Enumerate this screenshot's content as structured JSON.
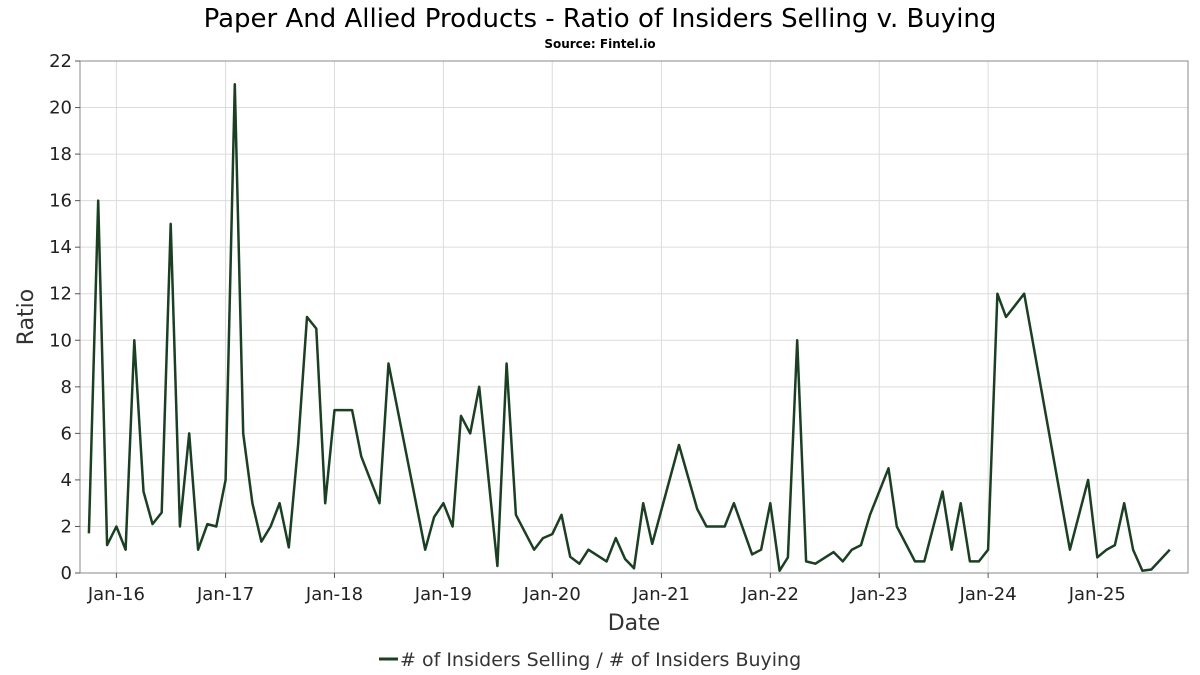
{
  "chart_data": {
    "type": "line",
    "title": "Paper And Allied Products - Ratio of Insiders Selling v. Buying",
    "subtitle": "Source: Fintel.io",
    "xlabel": "Date",
    "ylabel": "Ratio",
    "ylim": [
      0,
      22
    ],
    "yticks": [
      0,
      2,
      4,
      6,
      8,
      10,
      12,
      14,
      16,
      18,
      20,
      22
    ],
    "xlim": [
      "2015-09-01",
      "2025-11-01"
    ],
    "xticks": [
      {
        "label": "Jan-16",
        "date": "2016-01-01"
      },
      {
        "label": "Jan-17",
        "date": "2017-01-01"
      },
      {
        "label": "Jan-18",
        "date": "2018-01-01"
      },
      {
        "label": "Jan-19",
        "date": "2019-01-01"
      },
      {
        "label": "Jan-20",
        "date": "2020-01-01"
      },
      {
        "label": "Jan-21",
        "date": "2021-01-01"
      },
      {
        "label": "Jan-22",
        "date": "2022-01-01"
      },
      {
        "label": "Jan-23",
        "date": "2023-01-01"
      },
      {
        "label": "Jan-24",
        "date": "2024-01-01"
      },
      {
        "label": "Jan-25",
        "date": "2025-01-01"
      }
    ],
    "grid": true,
    "legend_position": "bottom",
    "series": [
      {
        "name": "# of Insiders Selling / # of Insiders Buying",
        "color": "#1b3f22",
        "points": [
          [
            "2015-10-01",
            1.7
          ],
          [
            "2015-11-01",
            16.0
          ],
          [
            "2015-12-01",
            1.2
          ],
          [
            "2016-01-01",
            2.0
          ],
          [
            "2016-02-01",
            1.0
          ],
          [
            "2016-03-01",
            10.0
          ],
          [
            "2016-04-01",
            3.5
          ],
          [
            "2016-05-01",
            2.1
          ],
          [
            "2016-06-01",
            2.6
          ],
          [
            "2016-07-01",
            15.0
          ],
          [
            "2016-08-01",
            2.0
          ],
          [
            "2016-09-01",
            6.0
          ],
          [
            "2016-10-01",
            1.0
          ],
          [
            "2016-11-01",
            2.1
          ],
          [
            "2016-12-01",
            2.0
          ],
          [
            "2017-01-01",
            4.0
          ],
          [
            "2017-02-01",
            21.0
          ],
          [
            "2017-03-01",
            6.0
          ],
          [
            "2017-04-01",
            3.0
          ],
          [
            "2017-05-01",
            1.35
          ],
          [
            "2017-06-01",
            2.0
          ],
          [
            "2017-07-01",
            3.0
          ],
          [
            "2017-08-01",
            1.1
          ],
          [
            "2017-09-01",
            5.5
          ],
          [
            "2017-10-01",
            11.0
          ],
          [
            "2017-11-01",
            10.5
          ],
          [
            "2017-12-01",
            3.0
          ],
          [
            "2018-01-01",
            7.0
          ],
          [
            "2018-03-01",
            7.0
          ],
          [
            "2018-04-01",
            5.0
          ],
          [
            "2018-06-01",
            3.0
          ],
          [
            "2018-07-01",
            9.0
          ],
          [
            "2018-11-01",
            1.0
          ],
          [
            "2018-12-01",
            2.4
          ],
          [
            "2019-01-01",
            3.0
          ],
          [
            "2019-02-01",
            2.0
          ],
          [
            "2019-03-01",
            6.75
          ],
          [
            "2019-04-01",
            6.0
          ],
          [
            "2019-05-01",
            8.0
          ],
          [
            "2019-07-01",
            0.3
          ],
          [
            "2019-08-01",
            9.0
          ],
          [
            "2019-09-01",
            2.5
          ],
          [
            "2019-11-01",
            1.0
          ],
          [
            "2019-12-01",
            1.5
          ],
          [
            "2020-01-01",
            1.67
          ],
          [
            "2020-02-01",
            2.5
          ],
          [
            "2020-03-01",
            0.7
          ],
          [
            "2020-04-01",
            0.4
          ],
          [
            "2020-05-01",
            1.0
          ],
          [
            "2020-07-01",
            0.5
          ],
          [
            "2020-08-01",
            1.5
          ],
          [
            "2020-09-01",
            0.6
          ],
          [
            "2020-10-01",
            0.2
          ],
          [
            "2020-11-01",
            3.0
          ],
          [
            "2020-12-01",
            1.25
          ],
          [
            "2021-03-01",
            5.5
          ],
          [
            "2021-05-01",
            2.75
          ],
          [
            "2021-06-01",
            2.0
          ],
          [
            "2021-08-01",
            2.0
          ],
          [
            "2021-09-01",
            3.0
          ],
          [
            "2021-11-01",
            0.8
          ],
          [
            "2021-12-01",
            1.0
          ],
          [
            "2022-01-01",
            3.0
          ],
          [
            "2022-02-01",
            0.1
          ],
          [
            "2022-03-01",
            0.67
          ],
          [
            "2022-04-01",
            10.0
          ],
          [
            "2022-05-01",
            0.5
          ],
          [
            "2022-06-01",
            0.4
          ],
          [
            "2022-08-01",
            0.9
          ],
          [
            "2022-09-01",
            0.5
          ],
          [
            "2022-10-01",
            1.0
          ],
          [
            "2022-11-01",
            1.2
          ],
          [
            "2022-12-01",
            2.5
          ],
          [
            "2023-02-01",
            4.5
          ],
          [
            "2023-03-01",
            2.0
          ],
          [
            "2023-05-01",
            0.5
          ],
          [
            "2023-06-01",
            0.5
          ],
          [
            "2023-08-01",
            3.5
          ],
          [
            "2023-09-01",
            1.0
          ],
          [
            "2023-10-01",
            3.0
          ],
          [
            "2023-11-01",
            0.5
          ],
          [
            "2023-12-01",
            0.5
          ],
          [
            "2024-01-01",
            1.0
          ],
          [
            "2024-02-01",
            12.0
          ],
          [
            "2024-03-01",
            11.0
          ],
          [
            "2024-05-01",
            12.0
          ],
          [
            "2024-10-01",
            1.0
          ],
          [
            "2024-12-01",
            4.0
          ],
          [
            "2025-01-01",
            0.67
          ],
          [
            "2025-02-01",
            1.0
          ],
          [
            "2025-03-01",
            1.2
          ],
          [
            "2025-04-01",
            3.0
          ],
          [
            "2025-05-01",
            1.0
          ],
          [
            "2025-06-01",
            0.1
          ],
          [
            "2025-07-01",
            0.15
          ],
          [
            "2025-09-01",
            1.0
          ]
        ]
      }
    ]
  }
}
